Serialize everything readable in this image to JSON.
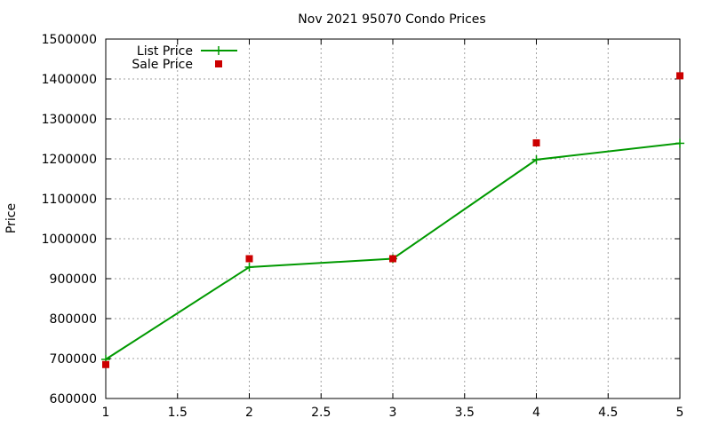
{
  "chart_data": {
    "type": "line",
    "title": "Nov 2021 95070 Condo Prices",
    "xlabel": "",
    "ylabel": "Price",
    "xlim": [
      1,
      5
    ],
    "ylim": [
      600000,
      1500000
    ],
    "x_ticks": [
      1,
      1.5,
      2,
      2.5,
      3,
      3.5,
      4,
      4.5,
      5
    ],
    "y_ticks": [
      600000,
      700000,
      800000,
      900000,
      1000000,
      1100000,
      1200000,
      1300000,
      1400000,
      1500000
    ],
    "grid": true,
    "legend_position": "top-left",
    "series": [
      {
        "name": "List Price",
        "style": "line-with-plus-markers",
        "color": "#009900",
        "x": [
          1,
          2,
          3,
          4,
          5
        ],
        "y": [
          698000,
          929000,
          950000,
          1198000,
          1239000
        ]
      },
      {
        "name": "Sale Price",
        "style": "square-markers",
        "color": "#cc0000",
        "x": [
          1,
          2,
          3,
          4,
          5
        ],
        "y": [
          685000,
          950000,
          950000,
          1240000,
          1408000
        ]
      }
    ]
  }
}
